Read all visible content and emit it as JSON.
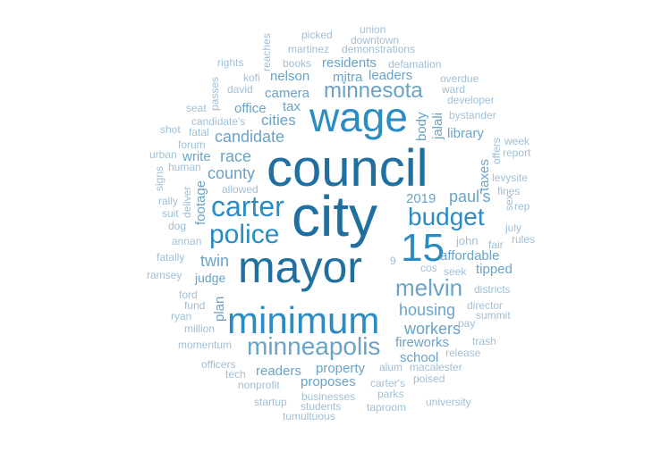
{
  "palette": {
    "dark": "#1f6fa0",
    "mid": "#2b8cc4",
    "light": "#6aa3c6",
    "pale": "#9fbfd6"
  },
  "words": [
    {
      "text": "council"
    },
    {
      "text": "city"
    },
    {
      "text": "mayor"
    },
    {
      "text": "wage"
    },
    {
      "text": "minimum"
    },
    {
      "text": "15"
    },
    {
      "text": "carter"
    },
    {
      "text": "police"
    },
    {
      "text": "budget"
    },
    {
      "text": "minneapolis"
    },
    {
      "text": "minnesota"
    },
    {
      "text": "melvin"
    },
    {
      "text": "candidate"
    },
    {
      "text": "twin"
    },
    {
      "text": "housing"
    },
    {
      "text": "workers"
    },
    {
      "text": "paul's"
    },
    {
      "text": "race"
    },
    {
      "text": "county"
    },
    {
      "text": "cities"
    },
    {
      "text": "camera"
    },
    {
      "text": "2019"
    },
    {
      "text": "affordable"
    },
    {
      "text": "tipped"
    },
    {
      "text": "fireworks"
    },
    {
      "text": "school"
    },
    {
      "text": "property"
    },
    {
      "text": "readers"
    },
    {
      "text": "proposes"
    },
    {
      "text": "office"
    },
    {
      "text": "write"
    },
    {
      "text": "judge"
    },
    {
      "text": "footage"
    },
    {
      "text": "residents"
    },
    {
      "text": "nelson"
    },
    {
      "text": "mitra"
    },
    {
      "text": "leaders"
    },
    {
      "text": "tax"
    },
    {
      "text": "library"
    },
    {
      "text": "taxes"
    },
    {
      "text": "body"
    },
    {
      "text": "jalali"
    },
    {
      "text": "john"
    },
    {
      "text": "plan"
    },
    {
      "text": "picked"
    },
    {
      "text": "union"
    },
    {
      "text": "downtown"
    },
    {
      "text": "martinez"
    },
    {
      "text": "demonstrations"
    },
    {
      "text": "books"
    },
    {
      "text": "defamation"
    },
    {
      "text": "overdue"
    },
    {
      "text": "rights"
    },
    {
      "text": "kofi"
    },
    {
      "text": "david"
    },
    {
      "text": "ward"
    },
    {
      "text": "developer"
    },
    {
      "text": "seat"
    },
    {
      "text": "candidate's"
    },
    {
      "text": "bystander"
    },
    {
      "text": "shot"
    },
    {
      "text": "fatal"
    },
    {
      "text": "forum"
    },
    {
      "text": "urban"
    },
    {
      "text": "human"
    },
    {
      "text": "week"
    },
    {
      "text": "report"
    },
    {
      "text": "levysite"
    },
    {
      "text": "fines"
    },
    {
      "text": "allowed"
    },
    {
      "text": "rally"
    },
    {
      "text": "suit"
    },
    {
      "text": "dog"
    },
    {
      "text": "annan"
    },
    {
      "text": "rep"
    },
    {
      "text": "july"
    },
    {
      "text": "rules"
    },
    {
      "text": "fair"
    },
    {
      "text": "seek"
    },
    {
      "text": "cos"
    },
    {
      "text": "fatally"
    },
    {
      "text": "ramsey"
    },
    {
      "text": "districts"
    },
    {
      "text": "ford"
    },
    {
      "text": "fund"
    },
    {
      "text": "ryan"
    },
    {
      "text": "million"
    },
    {
      "text": "director"
    },
    {
      "text": "pay"
    },
    {
      "text": "summit"
    },
    {
      "text": "momentum"
    },
    {
      "text": "trash"
    },
    {
      "text": "release"
    },
    {
      "text": "officers"
    },
    {
      "text": "tech"
    },
    {
      "text": "alum"
    },
    {
      "text": "macalester"
    },
    {
      "text": "poised"
    },
    {
      "text": "nonprofit"
    },
    {
      "text": "carter's"
    },
    {
      "text": "parks"
    },
    {
      "text": "businesses"
    },
    {
      "text": "startup"
    },
    {
      "text": "students"
    },
    {
      "text": "taproom"
    },
    {
      "text": "university"
    },
    {
      "text": "tumultuous"
    },
    {
      "text": "reaches"
    },
    {
      "text": "passes"
    },
    {
      "text": "signs"
    },
    {
      "text": "deliver"
    },
    {
      "text": "offers"
    },
    {
      "text": "sex"
    },
    {
      "text": "9"
    }
  ]
}
